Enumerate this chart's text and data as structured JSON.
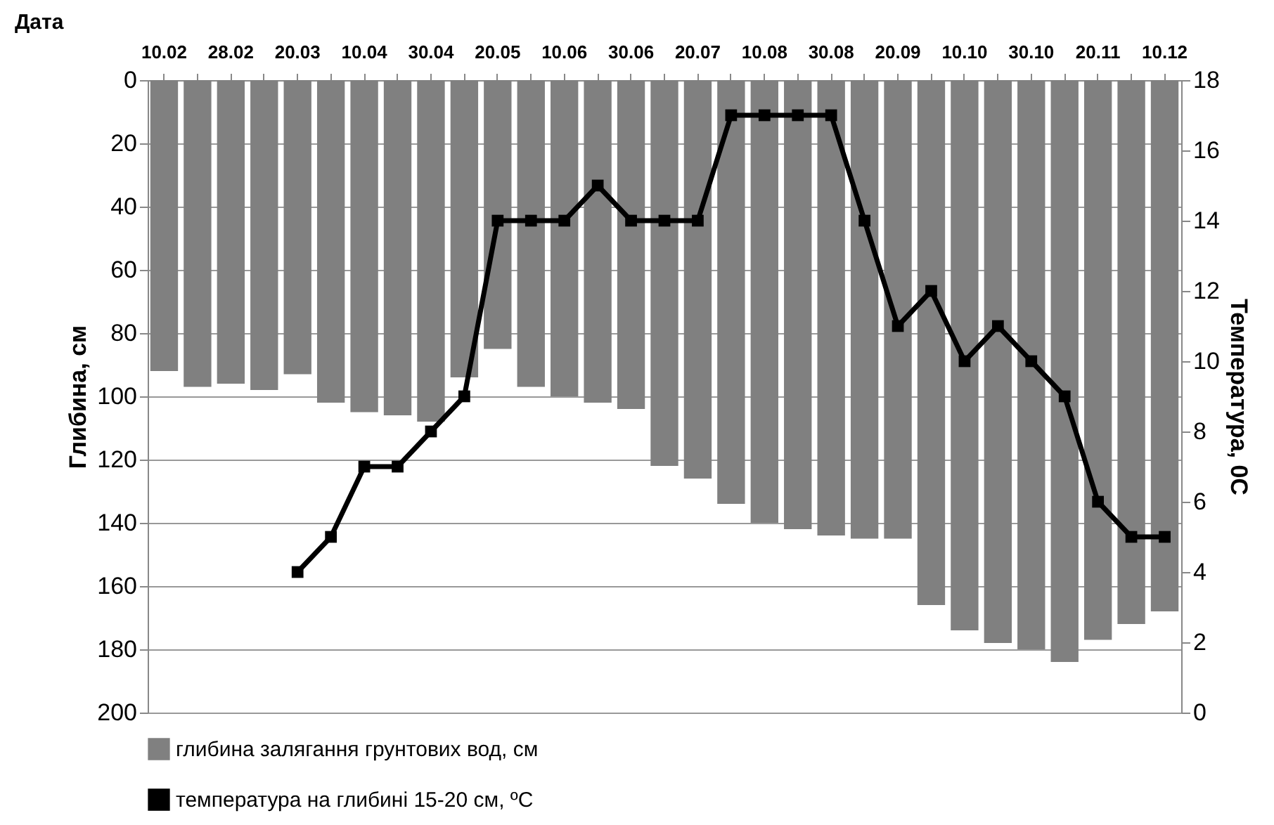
{
  "chart_data": {
    "type": "bar",
    "xlabel": "Дата",
    "ylabel": "Глибина, см",
    "y2label": "Температура, 0С",
    "categories": [
      "10.02",
      null,
      "28.02",
      null,
      "20.03",
      null,
      "10.04",
      null,
      "30.04",
      null,
      "20.05",
      null,
      "10.06",
      null,
      "30.06",
      null,
      "20.07",
      null,
      "10.08",
      null,
      "30.08",
      null,
      "20.09",
      null,
      "10.10",
      null,
      "30.10",
      null,
      "20.11",
      null,
      "10.12"
    ],
    "series": [
      {
        "name": "глибина залягання грунтових вод, см",
        "color": "#808080",
        "values": [
          92,
          97,
          96,
          98,
          93,
          102,
          105,
          106,
          108,
          94,
          85,
          97,
          100,
          102,
          104,
          122,
          126,
          134,
          140,
          142,
          144,
          145,
          145,
          166,
          174,
          178,
          180,
          184,
          177,
          172,
          168
        ]
      },
      {
        "name": "температура на глибині 15-20 см, ºС",
        "color": "#000000",
        "type": "line",
        "axis": "y2",
        "marker": "square",
        "line_style": "solid",
        "values": [
          null,
          null,
          null,
          null,
          4,
          5,
          7,
          7,
          8,
          9,
          14,
          14,
          14,
          15,
          14,
          14,
          14,
          17,
          17,
          17,
          17,
          14,
          11,
          12,
          10,
          11,
          10,
          9,
          6,
          5,
          5
        ]
      }
    ],
    "ylim": [
      200,
      0
    ],
    "yticks": [
      0,
      20,
      40,
      60,
      80,
      100,
      120,
      140,
      160,
      180,
      200
    ],
    "y2lim": [
      0,
      18
    ],
    "y2ticks": [
      0,
      2,
      4,
      6,
      8,
      10,
      12,
      14,
      16,
      18
    ],
    "grid": "y",
    "legend": "bottom"
  }
}
